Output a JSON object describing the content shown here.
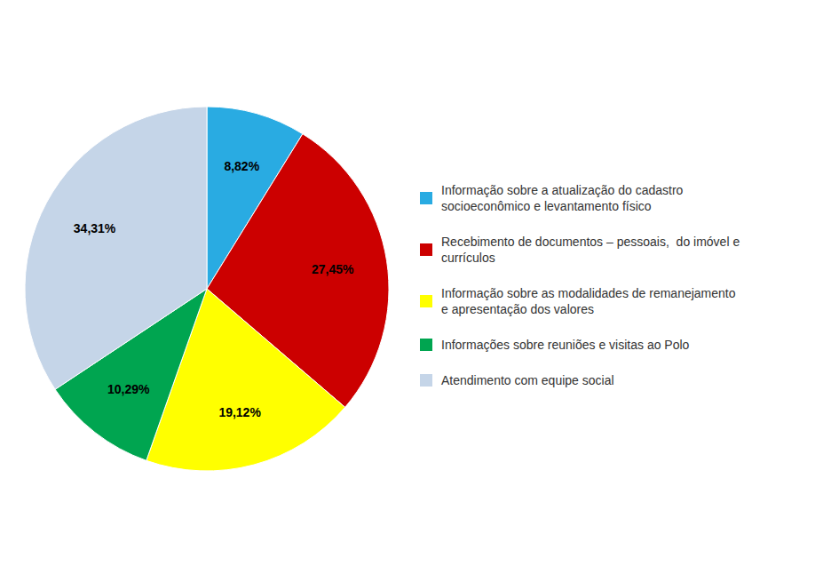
{
  "chart_data": {
    "type": "pie",
    "categories": [
      "Informação sobre a atualização do cadastro\nsocioeconômico e levantamento físico",
      "Recebimento de documentos – pessoais,  do imóvel e\ncurrículos",
      "Informação sobre as modalidades de remanejamento\ne apresentação dos valores",
      "Informações sobre reuniões e visitas ao Polo",
      "Atendimento com equipe social"
    ],
    "values": [
      8.82,
      27.45,
      19.12,
      10.29,
      34.31
    ],
    "value_labels": [
      "8,82%",
      "27,45%",
      "19,12%",
      "10,29%",
      "34,31%"
    ],
    "colors": [
      "#29ABE2",
      "#CC0000",
      "#FFFF00",
      "#00A550",
      "#C5D5E8"
    ],
    "data_labels": true,
    "legend": "right"
  }
}
